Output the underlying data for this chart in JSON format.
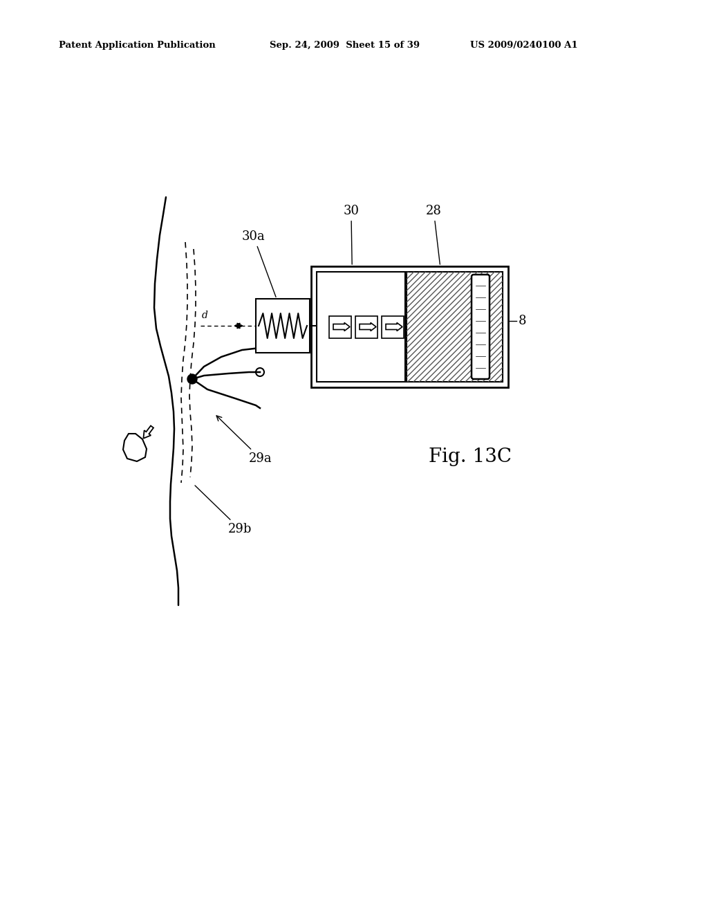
{
  "bg_color": "#ffffff",
  "header_left": "Patent Application Publication",
  "header_mid": "Sep. 24, 2009  Sheet 15 of 39",
  "header_right": "US 2009/0240100 A1",
  "fig_label": "Fig. 13C"
}
